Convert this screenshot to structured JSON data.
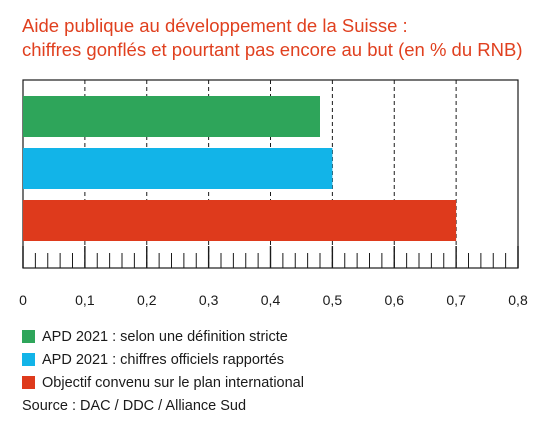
{
  "chart_data": {
    "type": "bar",
    "orientation": "horizontal",
    "title": [
      "Aide publique au développement de la Suisse :",
      "chiffres gonflés et pourtant pas encore au but (en % du RNB)"
    ],
    "categories": [
      "APD 2021 : selon une définition stricte",
      "APD 2021 : chiffres officiels rapportés",
      "Objectif convenu sur le plan international"
    ],
    "values": [
      0.48,
      0.5,
      0.7
    ],
    "colors": [
      "#2ea55a",
      "#12b4e8",
      "#de3a1c"
    ],
    "xlim": [
      0,
      0.8
    ],
    "xticks": [
      "0",
      "0,1",
      "0,2",
      "0,3",
      "0,4",
      "0,5",
      "0,6",
      "0,7",
      "0,8"
    ],
    "grid": "vertical dashed",
    "legend_position": "bottom-left",
    "source": "Source : DAC / DDC / Alliance Sud"
  }
}
